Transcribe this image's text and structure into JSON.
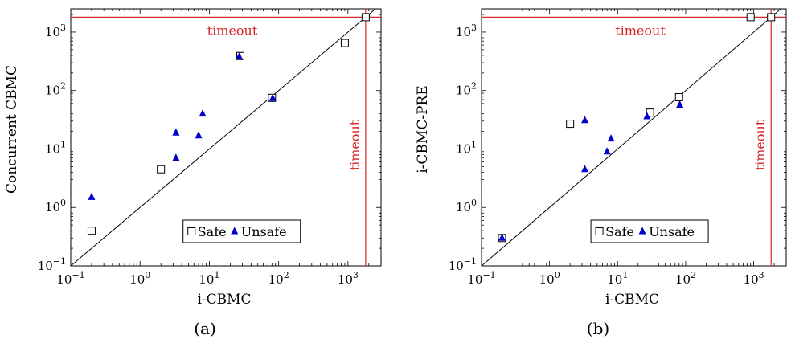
{
  "chart_data": [
    {
      "type": "scatter",
      "caption": "(a)",
      "xlabel": "i-CBMC",
      "ylabel": "Concurrent CBMC",
      "xscale": "log",
      "yscale": "log",
      "xlim": [
        0.1,
        3000
      ],
      "ylim": [
        0.1,
        2500
      ],
      "xticks": [
        {
          "base": "10",
          "exp": "−1",
          "value": 0.1
        },
        {
          "base": "10",
          "exp": "0",
          "value": 1
        },
        {
          "base": "10",
          "exp": "1",
          "value": 10
        },
        {
          "base": "10",
          "exp": "2",
          "value": 100
        },
        {
          "base": "10",
          "exp": "3",
          "value": 1000
        }
      ],
      "yticks": [
        {
          "base": "10",
          "exp": "−1",
          "value": 0.1
        },
        {
          "base": "10",
          "exp": "0",
          "value": 1
        },
        {
          "base": "10",
          "exp": "1",
          "value": 10
        },
        {
          "base": "10",
          "exp": "2",
          "value": 100
        },
        {
          "base": "10",
          "exp": "3",
          "value": 1000
        }
      ],
      "timeout": 1800,
      "timeout_label_x": "timeout",
      "timeout_label_y": "timeout",
      "diagonal": true,
      "legend_position": "bottom-right",
      "series": [
        {
          "name": "Safe",
          "marker": "square",
          "color": "#000000",
          "points": [
            [
              0.2,
              0.4
            ],
            [
              2,
              4.5
            ],
            [
              28,
              390
            ],
            [
              80,
              75
            ],
            [
              900,
              650
            ],
            [
              1800,
              1800
            ]
          ]
        },
        {
          "name": "Unsafe",
          "marker": "triangle",
          "color": "#0000cc",
          "points": [
            [
              0.2,
              1.5
            ],
            [
              3.3,
              7
            ],
            [
              3.3,
              19
            ],
            [
              7,
              17
            ],
            [
              8,
              40
            ],
            [
              27,
              380
            ],
            [
              82,
              74
            ]
          ]
        }
      ]
    },
    {
      "type": "scatter",
      "caption": "(b)",
      "xlabel": "i-CBMC",
      "ylabel": "i-CBMC-PRE",
      "xscale": "log",
      "yscale": "log",
      "xlim": [
        0.1,
        3000
      ],
      "ylim": [
        0.1,
        2500
      ],
      "xticks": [
        {
          "base": "10",
          "exp": "−1",
          "value": 0.1
        },
        {
          "base": "10",
          "exp": "0",
          "value": 1
        },
        {
          "base": "10",
          "exp": "1",
          "value": 10
        },
        {
          "base": "10",
          "exp": "2",
          "value": 100
        },
        {
          "base": "10",
          "exp": "3",
          "value": 1000
        }
      ],
      "yticks": [
        {
          "base": "10",
          "exp": "−1",
          "value": 0.1
        },
        {
          "base": "10",
          "exp": "0",
          "value": 1
        },
        {
          "base": "10",
          "exp": "1",
          "value": 10
        },
        {
          "base": "10",
          "exp": "2",
          "value": 100
        },
        {
          "base": "10",
          "exp": "3",
          "value": 1000
        }
      ],
      "timeout": 1800,
      "timeout_label_x": "timeout",
      "timeout_label_y": "timeout",
      "diagonal": true,
      "legend_position": "bottom-right",
      "series": [
        {
          "name": "Safe",
          "marker": "square",
          "color": "#000000",
          "points": [
            [
              0.2,
              0.3
            ],
            [
              2,
              27
            ],
            [
              30,
              42
            ],
            [
              80,
              77
            ],
            [
              900,
              1800
            ],
            [
              1800,
              1800
            ]
          ]
        },
        {
          "name": "Unsafe",
          "marker": "triangle",
          "color": "#0000cc",
          "points": [
            [
              0.2,
              0.3
            ],
            [
              3.3,
              31
            ],
            [
              3.3,
              4.5
            ],
            [
              7,
              9
            ],
            [
              8,
              15
            ],
            [
              27,
              36
            ],
            [
              82,
              57
            ]
          ]
        }
      ]
    }
  ]
}
